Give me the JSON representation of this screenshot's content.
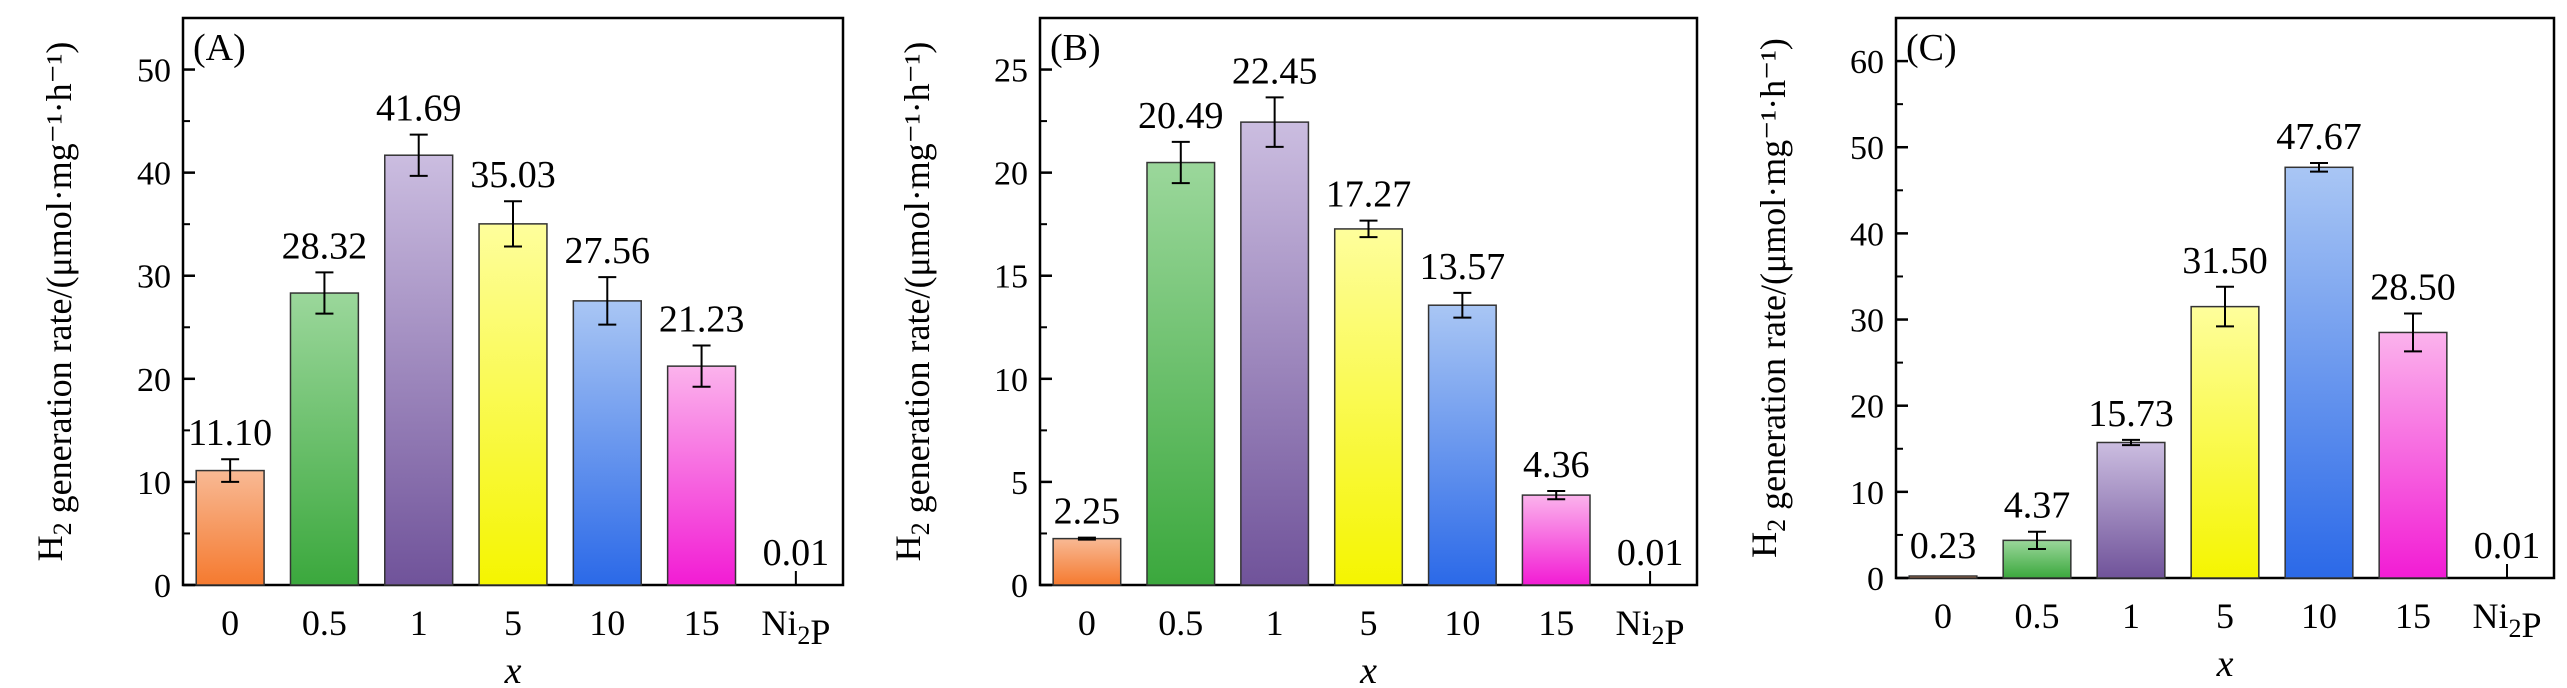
{
  "chart_data": [
    {
      "type": "bar",
      "panel_label": "(A)",
      "categories": [
        "0",
        "0.5",
        "1",
        "5",
        "10",
        "15",
        "Ni2P"
      ],
      "values": [
        11.1,
        28.32,
        41.69,
        35.03,
        27.56,
        21.23,
        0.01
      ],
      "value_labels": [
        "11.10",
        "28.32",
        "41.69",
        "35.03",
        "27.56",
        "21.23",
        "0.01"
      ],
      "errors": [
        1.1,
        2.0,
        2.0,
        2.2,
        2.3,
        2.0,
        0
      ],
      "xlabel": "x",
      "ylabel": "H2 generation rate/(μmol·mg⁻¹·h⁻¹)",
      "ylim": [
        0,
        55
      ],
      "yticks": [
        0,
        10,
        20,
        30,
        40,
        50
      ],
      "grid": false
    },
    {
      "type": "bar",
      "panel_label": "(B)",
      "categories": [
        "0",
        "0.5",
        "1",
        "5",
        "10",
        "15",
        "Ni2P"
      ],
      "values": [
        2.25,
        20.49,
        22.45,
        17.27,
        13.57,
        4.36,
        0.01
      ],
      "value_labels": [
        "2.25",
        "20.49",
        "22.45",
        "17.27",
        "13.57",
        "4.36",
        "0.01"
      ],
      "errors": [
        0.05,
        1.0,
        1.2,
        0.4,
        0.6,
        0.2,
        0
      ],
      "xlabel": "x",
      "ylabel": "H2 generation rate/(μmol·mg⁻¹·h⁻¹)",
      "ylim": [
        0,
        27.5
      ],
      "yticks": [
        0,
        5,
        10,
        15,
        20,
        25
      ],
      "grid": false
    },
    {
      "type": "bar",
      "panel_label": "(C)",
      "categories": [
        "0",
        "0.5",
        "1",
        "5",
        "10",
        "15",
        "Ni2P"
      ],
      "values": [
        0.23,
        4.37,
        15.73,
        31.5,
        47.67,
        28.5,
        0.01
      ],
      "value_labels": [
        "0.23",
        "4.37",
        "15.73",
        "31.50",
        "47.67",
        "28.50",
        "0.01"
      ],
      "errors": [
        0,
        1.0,
        0.3,
        2.3,
        0.5,
        2.2,
        0
      ],
      "xlabel": "x",
      "ylabel": "H2 generation rate/(μmol·mg⁻¹·h⁻¹)",
      "ylim": [
        0,
        65
      ],
      "yticks": [
        0,
        10,
        20,
        30,
        40,
        50,
        60
      ],
      "grid": false
    }
  ],
  "colors": {
    "bar_top": [
      "#f8b994",
      "#9bd79b",
      "#cbbde0",
      "#fefe9c",
      "#a9c6f4",
      "#fbb3ec",
      "#ffffff"
    ],
    "bar_bottom": [
      "#f57a2f",
      "#3ba83d",
      "#70539a",
      "#f5f500",
      "#2b69e8",
      "#f21cd4",
      "#ffffff"
    ],
    "axis": "#000000"
  }
}
